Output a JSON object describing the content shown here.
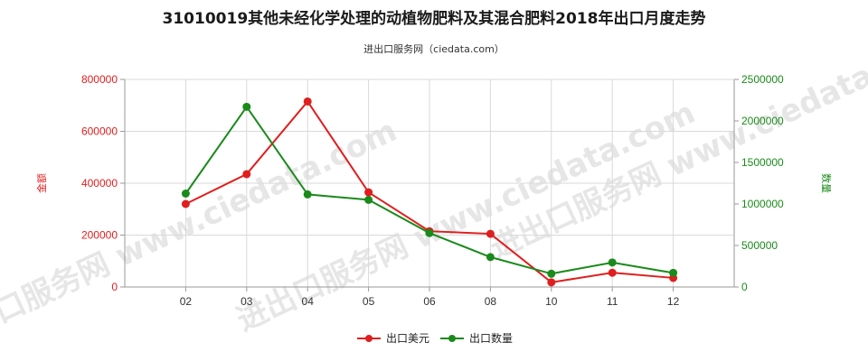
{
  "title": "31010019其他未经化学处理的动植物肥料及其混合肥料2018年出口月度走势",
  "subtitle": "进出口服务网（ciedata.com）",
  "watermark": "进出口服务网 www.ciedata.com",
  "colors": {
    "amount": "#e01e1e",
    "quantity": "#1a8a1a"
  },
  "chart_data": {
    "type": "line",
    "categories": [
      "02",
      "03",
      "04",
      "05",
      "06",
      "08",
      "10",
      "11",
      "12"
    ],
    "series": [
      {
        "name": "出口美元",
        "axis": "left",
        "values": [
          320000,
          435000,
          715000,
          365000,
          215000,
          205000,
          18000,
          55000,
          35000
        ]
      },
      {
        "name": "出口数量",
        "axis": "right",
        "values": [
          1125000,
          2170000,
          1115000,
          1050000,
          650000,
          360000,
          160000,
          295000,
          170000
        ]
      }
    ],
    "yleft": {
      "label": "金额",
      "min": 0,
      "max": 800000,
      "ticks": [
        "0",
        "200000",
        "400000",
        "600000",
        "800000"
      ],
      "values": [
        0,
        200000,
        400000,
        600000,
        800000
      ]
    },
    "yright": {
      "label": "数量",
      "min": 0,
      "max": 2500000,
      "ticks": [
        "0",
        "500000",
        "1000000",
        "1500000",
        "2000000",
        "2500000"
      ],
      "values": [
        0,
        500000,
        1000000,
        1500000,
        2000000,
        2500000
      ]
    },
    "grid": true,
    "legend_position": "bottom"
  }
}
